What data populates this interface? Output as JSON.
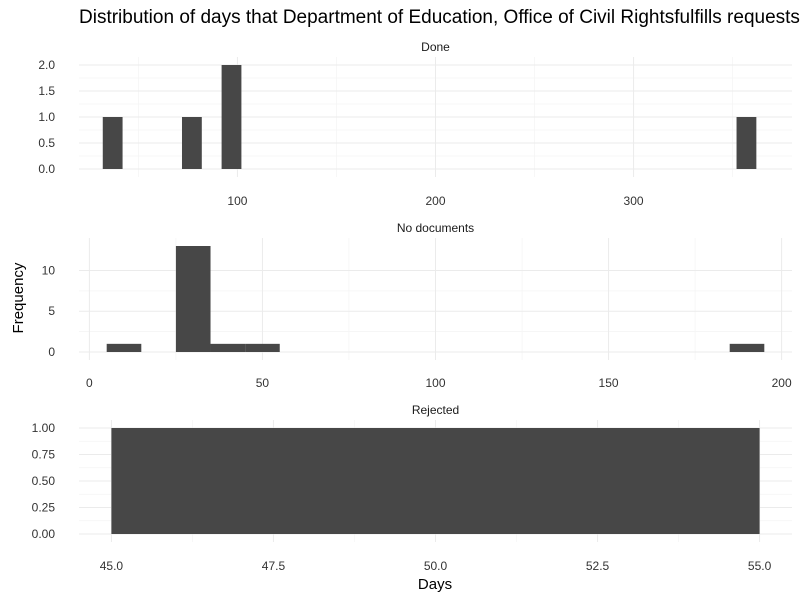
{
  "chart_data": {
    "type": "bar",
    "title": "Distribution of days that Department of Education, Office of Civil Rightsfulfills requests",
    "xlabel": "Days",
    "ylabel": "Frequency",
    "grid": true,
    "legend": "none",
    "bar_color": "#474747",
    "facets": [
      {
        "name": "Done",
        "xlim": [
          20,
          380
        ],
        "ylim": [
          0,
          2.0
        ],
        "x_ticks": [
          100,
          200,
          300
        ],
        "y_ticks": [
          0.0,
          0.5,
          1.0,
          1.5,
          2.0
        ],
        "x_tick_labels": [
          "100",
          "200",
          "300"
        ],
        "y_tick_labels": [
          "0.0",
          "0.5",
          "1.0",
          "1.5",
          "2.0"
        ],
        "bins": [
          {
            "x0": 32,
            "x1": 42,
            "count": 1
          },
          {
            "x0": 72,
            "x1": 82,
            "count": 1
          },
          {
            "x0": 92,
            "x1": 102,
            "count": 2
          },
          {
            "x0": 352,
            "x1": 362,
            "count": 1
          }
        ]
      },
      {
        "name": "No documents",
        "xlim": [
          -3,
          203
        ],
        "ylim": [
          0,
          13
        ],
        "x_ticks": [
          0,
          50,
          100,
          150,
          200
        ],
        "y_ticks": [
          0,
          5,
          10
        ],
        "x_tick_labels": [
          "0",
          "50",
          "100",
          "150",
          "200"
        ],
        "y_tick_labels": [
          "0",
          "5",
          "10"
        ],
        "bins": [
          {
            "x0": 5,
            "x1": 15,
            "count": 1
          },
          {
            "x0": 25,
            "x1": 35,
            "count": 13
          },
          {
            "x0": 35,
            "x1": 45,
            "count": 1
          },
          {
            "x0": 45,
            "x1": 55,
            "count": 1
          },
          {
            "x0": 185,
            "x1": 195,
            "count": 1
          }
        ]
      },
      {
        "name": "Rejected",
        "xlim": [
          44.5,
          55.5
        ],
        "ylim": [
          0,
          1.0
        ],
        "x_ticks": [
          45.0,
          47.5,
          50.0,
          52.5,
          55.0
        ],
        "y_ticks": [
          0.0,
          0.25,
          0.5,
          0.75,
          1.0
        ],
        "x_tick_labels": [
          "45.0",
          "47.5",
          "50.0",
          "52.5",
          "55.0"
        ],
        "y_tick_labels": [
          "0.00",
          "0.25",
          "0.50",
          "0.75",
          "1.00"
        ],
        "bins": [
          {
            "x0": 45,
            "x1": 55,
            "count": 1
          }
        ]
      }
    ]
  }
}
